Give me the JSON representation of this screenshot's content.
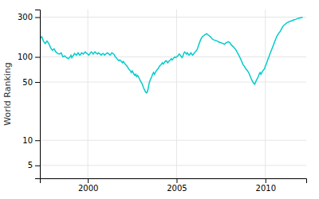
{
  "chart_data": {
    "type": "line",
    "ylabel": "World Ranking",
    "color": "#00cccc",
    "log": "y",
    "grid": true,
    "xlim": [
      1997.3,
      2012.3
    ],
    "ylim": [
      3.5,
      370
    ],
    "xticks": [
      2000,
      2005,
      2010
    ],
    "yticks": [
      5,
      10,
      50,
      100,
      300
    ],
    "x": [
      1997.3,
      1997.4,
      1997.5,
      1997.6,
      1997.7,
      1997.8,
      1997.9,
      1998.0,
      1998.1,
      1998.2,
      1998.3,
      1998.4,
      1998.5,
      1998.6,
      1998.7,
      1998.8,
      1998.9,
      1999.0,
      1999.05,
      1999.1,
      1999.15,
      1999.2,
      1999.25,
      1999.3,
      1999.35,
      1999.4,
      1999.45,
      1999.5,
      1999.55,
      1999.6,
      1999.65,
      1999.7,
      1999.75,
      1999.8,
      1999.85,
      1999.9,
      1999.95,
      2000.0,
      2000.05,
      2000.1,
      2000.15,
      2000.2,
      2000.25,
      2000.3,
      2000.35,
      2000.4,
      2000.45,
      2000.5,
      2000.55,
      2000.6,
      2000.65,
      2000.7,
      2000.75,
      2000.8,
      2000.85,
      2000.9,
      2000.95,
      2001.0,
      2001.05,
      2001.1,
      2001.15,
      2001.2,
      2001.25,
      2001.3,
      2001.35,
      2001.4,
      2001.45,
      2001.5,
      2001.55,
      2001.6,
      2001.65,
      2001.7,
      2001.75,
      2001.8,
      2001.85,
      2001.9,
      2001.95,
      2002.0,
      2002.05,
      2002.1,
      2002.15,
      2002.2,
      2002.25,
      2002.3,
      2002.35,
      2002.4,
      2002.45,
      2002.5,
      2002.55,
      2002.6,
      2002.65,
      2002.7,
      2002.75,
      2002.8,
      2002.85,
      2002.9,
      2002.95,
      2003.0,
      2003.05,
      2003.1,
      2003.15,
      2003.2,
      2003.25,
      2003.3,
      2003.35,
      2003.4,
      2003.45,
      2003.5,
      2003.55,
      2003.6,
      2003.65,
      2003.7,
      2003.75,
      2003.8,
      2003.85,
      2003.9,
      2003.95,
      2004.0,
      2004.05,
      2004.1,
      2004.15,
      2004.2,
      2004.25,
      2004.3,
      2004.35,
      2004.4,
      2004.45,
      2004.5,
      2004.55,
      2004.6,
      2004.65,
      2004.7,
      2004.75,
      2004.8,
      2004.85,
      2004.9,
      2004.95,
      2005.0,
      2005.05,
      2005.1,
      2005.15,
      2005.2,
      2005.25,
      2005.3,
      2005.35,
      2005.4,
      2005.45,
      2005.5,
      2005.55,
      2005.6,
      2005.65,
      2005.7,
      2005.75,
      2005.8,
      2005.85,
      2005.9,
      2005.95,
      2006.0,
      2006.05,
      2006.1,
      2006.15,
      2006.2,
      2006.25,
      2006.3,
      2006.35,
      2006.4,
      2006.45,
      2006.5,
      2006.55,
      2006.6,
      2006.65,
      2006.7,
      2006.75,
      2006.8,
      2006.85,
      2006.9,
      2007.0,
      2007.05,
      2007.1,
      2007.3,
      2007.35,
      2007.5,
      2007.6,
      2007.7,
      2007.8,
      2007.9,
      2008.0,
      2008.05,
      2008.1,
      2008.15,
      2008.2,
      2008.25,
      2008.3,
      2008.35,
      2008.4,
      2008.45,
      2008.5,
      2008.55,
      2008.6,
      2008.65,
      2008.7,
      2008.75,
      2008.8,
      2008.85,
      2008.9,
      2008.95,
      2009.0,
      2009.05,
      2009.1,
      2009.15,
      2009.2,
      2009.25,
      2009.3,
      2009.35,
      2009.4,
      2009.45,
      2009.5,
      2009.55,
      2009.6,
      2009.65,
      2009.7,
      2009.75,
      2009.8,
      2009.85,
      2009.9,
      2009.95,
      2010.0,
      2010.05,
      2010.1,
      2010.15,
      2010.2,
      2010.25,
      2010.3,
      2010.35,
      2010.4,
      2010.45,
      2010.5,
      2010.55,
      2010.6,
      2010.65,
      2010.7,
      2010.75,
      2010.8,
      2010.85,
      2010.9,
      2010.95,
      2011.0,
      2011.1,
      2011.2,
      2011.3,
      2011.4,
      2011.5,
      2011.6,
      2011.7,
      2011.8,
      2011.9,
      2012.0,
      2012.1
    ],
    "values": [
      165,
      175,
      155,
      145,
      155,
      145,
      130,
      120,
      125,
      115,
      110,
      108,
      112,
      100,
      103,
      98,
      95,
      100,
      105,
      98,
      102,
      105,
      110,
      108,
      105,
      108,
      112,
      108,
      105,
      108,
      112,
      110,
      108,
      112,
      115,
      112,
      110,
      108,
      105,
      108,
      112,
      115,
      112,
      108,
      112,
      115,
      112,
      110,
      108,
      112,
      110,
      108,
      105,
      108,
      110,
      108,
      105,
      108,
      110,
      112,
      110,
      108,
      105,
      108,
      112,
      110,
      108,
      105,
      100,
      98,
      95,
      92,
      90,
      92,
      90,
      88,
      85,
      88,
      85,
      82,
      80,
      78,
      75,
      72,
      70,
      68,
      65,
      68,
      65,
      62,
      60,
      62,
      58,
      60,
      58,
      55,
      52,
      50,
      48,
      45,
      42,
      40,
      38,
      37,
      38,
      42,
      48,
      52,
      55,
      58,
      62,
      65,
      62,
      65,
      68,
      70,
      72,
      75,
      78,
      80,
      82,
      85,
      82,
      85,
      88,
      90,
      88,
      85,
      88,
      90,
      92,
      95,
      92,
      95,
      98,
      100,
      98,
      100,
      102,
      105,
      108,
      105,
      102,
      98,
      102,
      110,
      115,
      112,
      108,
      112,
      108,
      105,
      108,
      112,
      108,
      105,
      108,
      112,
      115,
      118,
      122,
      130,
      140,
      150,
      160,
      168,
      175,
      178,
      182,
      185,
      188,
      190,
      185,
      182,
      178,
      175,
      165,
      162,
      160,
      155,
      152,
      148,
      145,
      142,
      148,
      152,
      148,
      142,
      138,
      135,
      132,
      128,
      125,
      120,
      115,
      110,
      105,
      100,
      95,
      90,
      85,
      80,
      78,
      75,
      72,
      70,
      68,
      65,
      62,
      58,
      55,
      52,
      50,
      48,
      47,
      50,
      53,
      55,
      58,
      62,
      65,
      62,
      65,
      68,
      70,
      72,
      78,
      82,
      88,
      95,
      100,
      108,
      115,
      122,
      130,
      138,
      148,
      158,
      168,
      178,
      185,
      192,
      198,
      205,
      215,
      225,
      235,
      245,
      255,
      262,
      268,
      272,
      278,
      282,
      288,
      292,
      295,
      298
    ]
  }
}
